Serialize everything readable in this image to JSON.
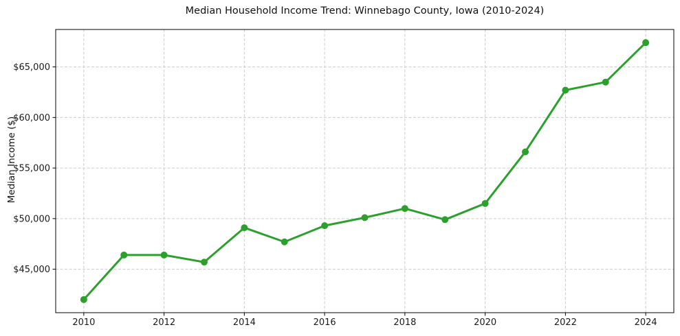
{
  "chart_data": {
    "type": "line",
    "title": "Median Household Income Trend: Winnebago County, Iowa (2010-2024)",
    "xlabel": "",
    "ylabel": "Median Income ($)",
    "series_name": "Median Household Income",
    "x": [
      2010,
      2011,
      2012,
      2013,
      2014,
      2015,
      2016,
      2017,
      2018,
      2019,
      2020,
      2021,
      2022,
      2023,
      2024
    ],
    "values": [
      42000,
      46400,
      46400,
      45700,
      49100,
      47700,
      49300,
      50100,
      51000,
      49900,
      51500,
      56600,
      62700,
      63500,
      67400
    ],
    "x_ticks": [
      2010,
      2012,
      2014,
      2016,
      2018,
      2020,
      2022,
      2024
    ],
    "x_tick_labels": [
      "2010",
      "2012",
      "2014",
      "2016",
      "2018",
      "2020",
      "2022",
      "2024"
    ],
    "y_ticks": [
      45000,
      50000,
      55000,
      60000,
      65000
    ],
    "y_tick_labels": [
      "$45,000",
      "$50,000",
      "$55,000",
      "$60,000",
      "$65,000"
    ],
    "xlim": [
      2009.3,
      2024.7
    ],
    "ylim": [
      40700,
      68700
    ],
    "grid": true,
    "grid_style": "dashed",
    "legend": "none",
    "marker": "o",
    "colors": {
      "line": "#2ca02c",
      "marker": "#2ca02c",
      "grid": "#cccccc",
      "axis": "#000000",
      "tick_text": "#1a1a1a",
      "background": "#ffffff"
    }
  }
}
